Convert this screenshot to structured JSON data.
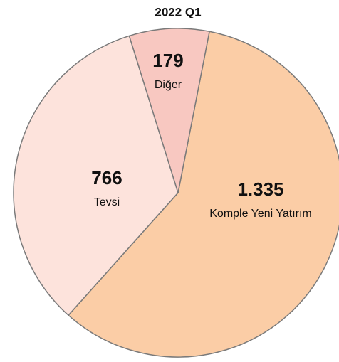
{
  "chart_data": {
    "type": "pie",
    "title": "2022 Q1",
    "categories": [
      "Komple Yeni Yatırım",
      "Tevsi",
      "Diğer"
    ],
    "values": [
      1335,
      766,
      179
    ],
    "value_labels": [
      "1.335",
      "766",
      "179"
    ],
    "colors": [
      "#fbcda6",
      "#fde3dc",
      "#f8c8c1"
    ]
  }
}
